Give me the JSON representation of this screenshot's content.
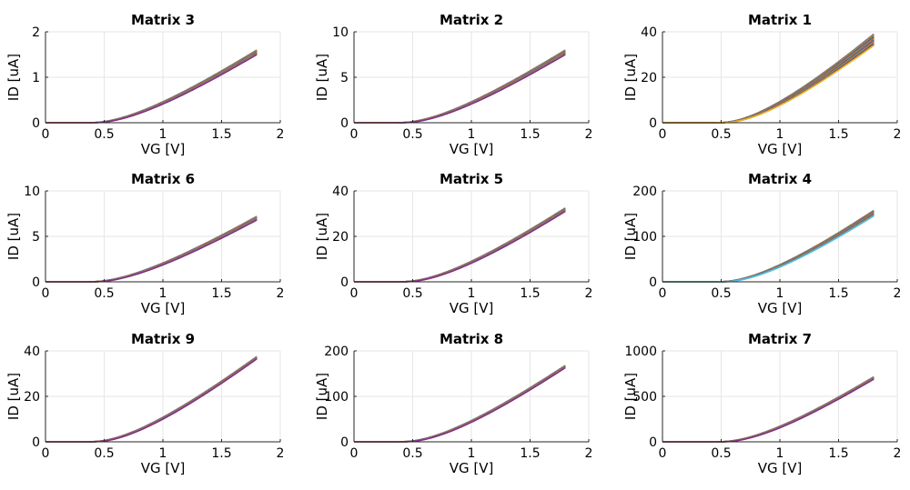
{
  "chart_data": [
    {
      "type": "line",
      "title": "Matrix 3",
      "xlabel": "VG [V]",
      "ylabel": "ID [uA]",
      "xlim": [
        0,
        2
      ],
      "ylim": [
        0,
        2
      ],
      "xticks": [
        "0",
        "0.5",
        "1",
        "1.5",
        "2"
      ],
      "yticks": [
        "0",
        "1",
        "2"
      ],
      "grid": true,
      "vth": 0.4,
      "imax": [
        1.5,
        1.6
      ],
      "ncurves": 18
    },
    {
      "type": "line",
      "title": "Matrix 2",
      "xlabel": "VG [V]",
      "ylabel": "ID [uA]",
      "xlim": [
        0,
        2
      ],
      "ylim": [
        0,
        10
      ],
      "xticks": [
        "0",
        "0.5",
        "1",
        "1.5",
        "2"
      ],
      "yticks": [
        "0",
        "5",
        "10"
      ],
      "grid": true,
      "vth": 0.4,
      "imax": [
        7.5,
        8.0
      ],
      "ncurves": 18
    },
    {
      "type": "line",
      "title": "Matrix 1",
      "xlabel": "VG [V]",
      "ylabel": "ID [uA]",
      "xlim": [
        0,
        2
      ],
      "ylim": [
        0,
        40
      ],
      "xticks": [
        "0",
        "0.5",
        "1",
        "1.5",
        "2"
      ],
      "yticks": [
        "0",
        "20",
        "40"
      ],
      "grid": true,
      "vth": 0.5,
      "imax": [
        34,
        39
      ],
      "ncurves": 24
    },
    {
      "type": "line",
      "title": "Matrix 6",
      "xlabel": "VG [V]",
      "ylabel": "ID [uA]",
      "xlim": [
        0,
        2
      ],
      "ylim": [
        0,
        10
      ],
      "xticks": [
        "0",
        "0.5",
        "1",
        "1.5",
        "2"
      ],
      "yticks": [
        "0",
        "5",
        "10"
      ],
      "grid": true,
      "vth": 0.4,
      "imax": [
        6.8,
        7.2
      ],
      "ncurves": 18
    },
    {
      "type": "line",
      "title": "Matrix 5",
      "xlabel": "VG [V]",
      "ylabel": "ID [uA]",
      "xlim": [
        0,
        2
      ],
      "ylim": [
        0,
        40
      ],
      "xticks": [
        "0",
        "0.5",
        "1",
        "1.5",
        "2"
      ],
      "yticks": [
        "0",
        "20",
        "40"
      ],
      "grid": true,
      "vth": 0.42,
      "imax": [
        31,
        32.5
      ],
      "ncurves": 18
    },
    {
      "type": "line",
      "title": "Matrix 4",
      "xlabel": "VG [V]",
      "ylabel": "ID [uA]",
      "xlim": [
        0,
        2
      ],
      "ylim": [
        0,
        200
      ],
      "xticks": [
        "0",
        "0.5",
        "1",
        "1.5",
        "2"
      ],
      "yticks": [
        "0",
        "100",
        "200"
      ],
      "grid": true,
      "vth": 0.5,
      "imax": [
        145,
        157
      ],
      "ncurves": 20
    },
    {
      "type": "line",
      "title": "Matrix 9",
      "xlabel": "VG [V]",
      "ylabel": "ID [uA]",
      "xlim": [
        0,
        2
      ],
      "ylim": [
        0,
        40
      ],
      "xticks": [
        "0",
        "0.5",
        "1",
        "1.5",
        "2"
      ],
      "yticks": [
        "0",
        "20",
        "40"
      ],
      "grid": true,
      "vth": 0.4,
      "imax": [
        36.5,
        37.5
      ],
      "ncurves": 18
    },
    {
      "type": "line",
      "title": "Matrix 8",
      "xlabel": "VG [V]",
      "ylabel": "ID [uA]",
      "xlim": [
        0,
        2
      ],
      "ylim": [
        0,
        200
      ],
      "xticks": [
        "0",
        "0.5",
        "1",
        "1.5",
        "2"
      ],
      "yticks": [
        "0",
        "100",
        "200"
      ],
      "grid": true,
      "vth": 0.42,
      "imax": [
        163,
        168
      ],
      "ncurves": 18
    },
    {
      "type": "line",
      "title": "Matrix 7",
      "xlabel": "VG [V]",
      "ylabel": "ID [uA]",
      "xlim": [
        0,
        2
      ],
      "ylim": [
        0,
        1000
      ],
      "xticks": [
        "0",
        "0.5",
        "1",
        "1.5",
        "2"
      ],
      "yticks": [
        "0",
        "500",
        "1000"
      ],
      "grid": true,
      "vth": 0.5,
      "imax": [
        690,
        715
      ],
      "ncurves": 18
    }
  ],
  "colors": {
    "series_palette": [
      "#0072BD",
      "#D95319",
      "#EDB120",
      "#7E2F8E",
      "#77AC30",
      "#4DBEEE",
      "#A2142F"
    ],
    "grid": "#e6e6e6",
    "axis": "#262626"
  }
}
